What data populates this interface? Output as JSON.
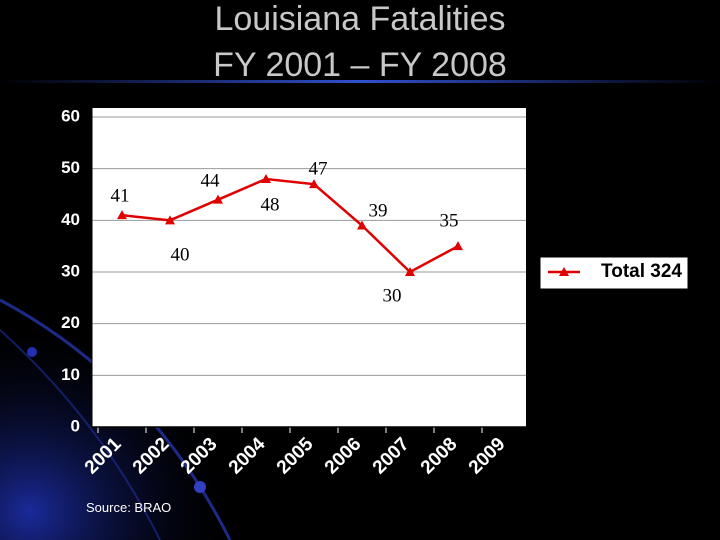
{
  "chart_data": {
    "type": "line",
    "title": "Louisiana Fatalities",
    "subtitle": "FY 2001 – FY 2008",
    "categories": [
      "2001",
      "2002",
      "2003",
      "2004",
      "2005",
      "2006",
      "2007",
      "2008",
      "2009"
    ],
    "series": [
      {
        "name": "Total 324",
        "color": "#e00000",
        "values": [
          41,
          40,
          44,
          48,
          47,
          39,
          30,
          35,
          null
        ]
      }
    ],
    "ylim": [
      0,
      60
    ],
    "yticks": [
      0,
      10,
      20,
      30,
      40,
      50,
      60
    ],
    "grid": true,
    "legend": "right",
    "source": "Source: BRAO"
  }
}
